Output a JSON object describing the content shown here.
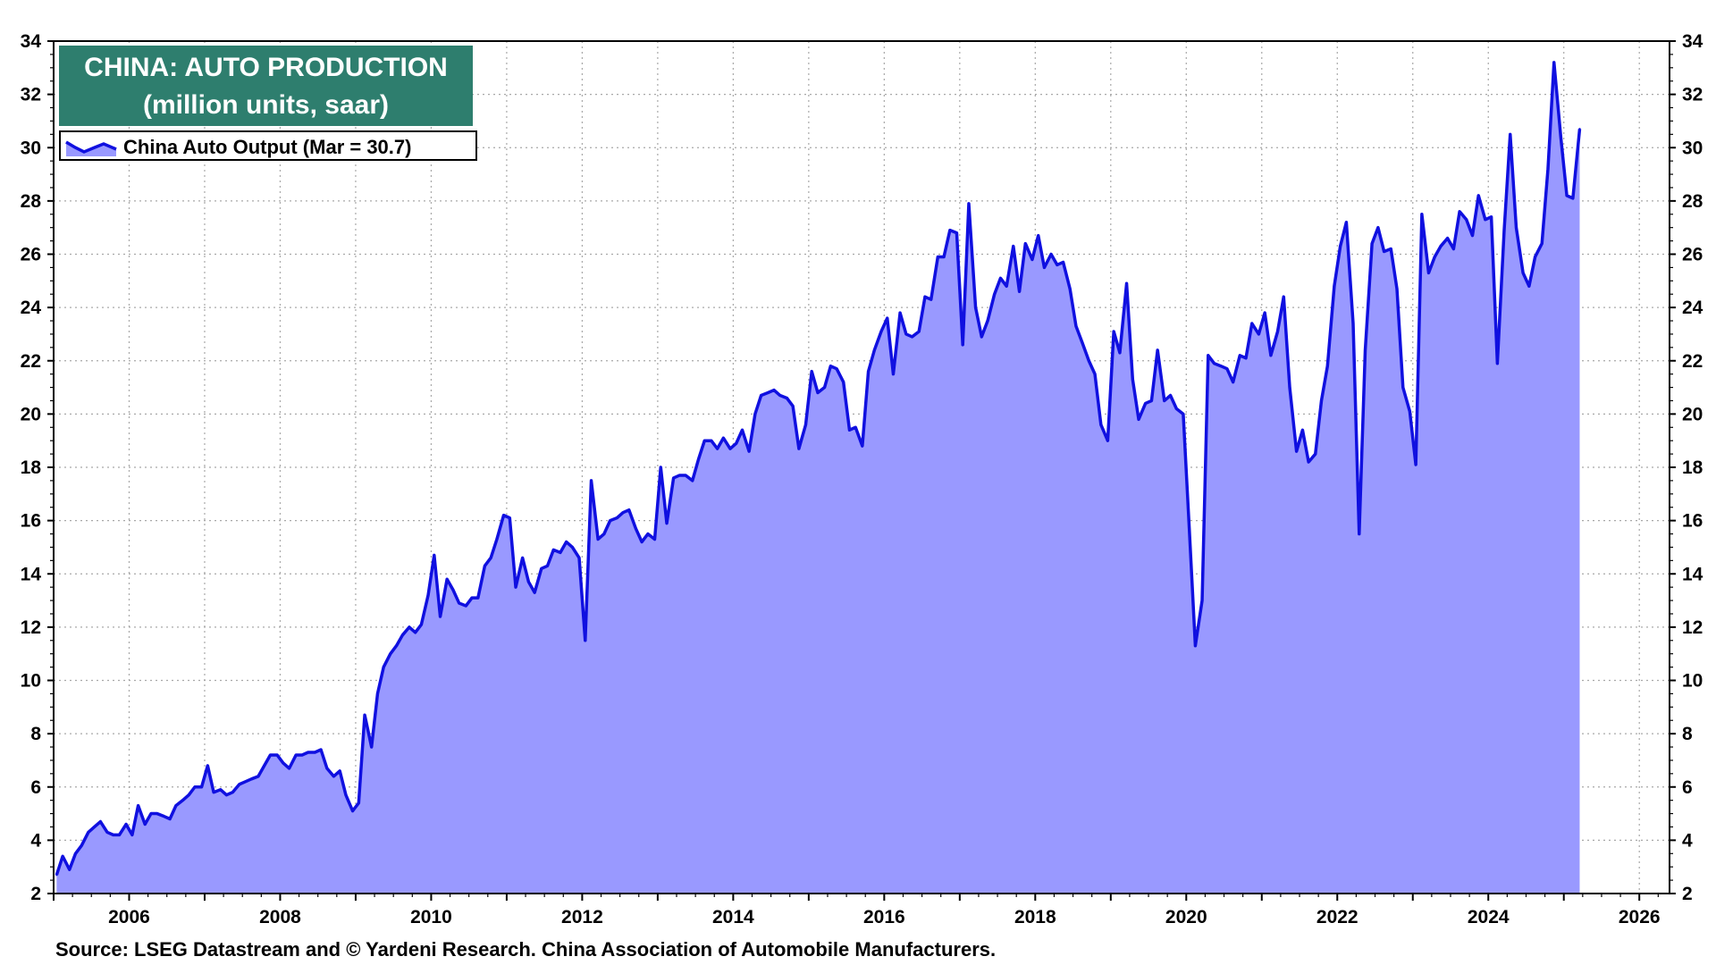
{
  "chart_data": {
    "type": "area",
    "title": "CHINA: AUTO PRODUCTION",
    "subtitle": "(million units, saar)",
    "source": "Source: LSEG Datastream and © Yardeni Research. China Association of Automobile Manufacturers.",
    "xlim": [
      2005.0,
      2026.4
    ],
    "ylim": [
      2,
      34
    ],
    "x_ticks": [
      "2006",
      "2008",
      "2010",
      "2012",
      "2014",
      "2016",
      "2018",
      "2020",
      "2022",
      "2024",
      "2026"
    ],
    "y_ticks": [
      "2",
      "4",
      "6",
      "8",
      "10",
      "12",
      "14",
      "16",
      "18",
      "20",
      "22",
      "24",
      "26",
      "28",
      "30",
      "32",
      "34"
    ],
    "grid": true,
    "legend_position": "top-left",
    "colors": {
      "line": "#1010e0",
      "fill": "#9999ff",
      "title_bg": "#2e7e6e"
    },
    "series": [
      {
        "name": "China Auto Output (Mar = 30.7)",
        "x": [
          2005.04,
          2005.12,
          2005.21,
          2005.29,
          2005.37,
          2005.46,
          2005.54,
          2005.62,
          2005.71,
          2005.79,
          2005.87,
          2005.96,
          2006.04,
          2006.12,
          2006.21,
          2006.29,
          2006.37,
          2006.46,
          2006.54,
          2006.62,
          2006.71,
          2006.79,
          2006.87,
          2006.96,
          2007.04,
          2007.12,
          2007.21,
          2007.29,
          2007.37,
          2007.46,
          2007.54,
          2007.62,
          2007.71,
          2007.79,
          2007.87,
          2007.96,
          2008.04,
          2008.12,
          2008.21,
          2008.29,
          2008.37,
          2008.46,
          2008.54,
          2008.62,
          2008.71,
          2008.79,
          2008.87,
          2008.96,
          2009.04,
          2009.12,
          2009.21,
          2009.29,
          2009.37,
          2009.46,
          2009.54,
          2009.62,
          2009.71,
          2009.79,
          2009.87,
          2009.96,
          2010.04,
          2010.12,
          2010.21,
          2010.29,
          2010.37,
          2010.46,
          2010.54,
          2010.62,
          2010.71,
          2010.79,
          2010.87,
          2010.96,
          2011.04,
          2011.12,
          2011.21,
          2011.29,
          2011.37,
          2011.46,
          2011.54,
          2011.62,
          2011.71,
          2011.79,
          2011.87,
          2011.96,
          2012.04,
          2012.12,
          2012.21,
          2012.29,
          2012.37,
          2012.46,
          2012.54,
          2012.62,
          2012.71,
          2012.79,
          2012.87,
          2012.96,
          2013.04,
          2013.12,
          2013.21,
          2013.29,
          2013.37,
          2013.46,
          2013.54,
          2013.62,
          2013.71,
          2013.79,
          2013.87,
          2013.96,
          2014.04,
          2014.12,
          2014.21,
          2014.29,
          2014.37,
          2014.46,
          2014.54,
          2014.62,
          2014.71,
          2014.79,
          2014.87,
          2014.96,
          2015.04,
          2015.12,
          2015.21,
          2015.29,
          2015.37,
          2015.46,
          2015.54,
          2015.62,
          2015.71,
          2015.79,
          2015.87,
          2015.96,
          2016.04,
          2016.12,
          2016.21,
          2016.29,
          2016.37,
          2016.46,
          2016.54,
          2016.62,
          2016.71,
          2016.79,
          2016.87,
          2016.96,
          2017.04,
          2017.12,
          2017.21,
          2017.29,
          2017.37,
          2017.46,
          2017.54,
          2017.62,
          2017.71,
          2017.79,
          2017.87,
          2017.96,
          2018.04,
          2018.12,
          2018.21,
          2018.29,
          2018.37,
          2018.46,
          2018.54,
          2018.62,
          2018.71,
          2018.79,
          2018.87,
          2018.96,
          2019.04,
          2019.12,
          2019.21,
          2019.29,
          2019.37,
          2019.46,
          2019.54,
          2019.62,
          2019.71,
          2019.79,
          2019.87,
          2019.96,
          2020.04,
          2020.12,
          2020.21,
          2020.29,
          2020.37,
          2020.46,
          2020.54,
          2020.62,
          2020.71,
          2020.79,
          2020.87,
          2020.96,
          2021.04,
          2021.12,
          2021.21,
          2021.29,
          2021.37,
          2021.46,
          2021.54,
          2021.62,
          2021.71,
          2021.79,
          2021.87,
          2021.96,
          2022.04,
          2022.12,
          2022.21,
          2022.29,
          2022.37,
          2022.46,
          2022.54,
          2022.62,
          2022.71,
          2022.79,
          2022.87,
          2022.96,
          2023.04,
          2023.12,
          2023.21,
          2023.29,
          2023.37,
          2023.46,
          2023.54,
          2023.62,
          2023.71,
          2023.79,
          2023.87,
          2023.96,
          2024.04,
          2024.12,
          2024.21,
          2024.29,
          2024.37,
          2024.46,
          2024.54,
          2024.62,
          2024.71,
          2024.79,
          2024.87,
          2024.96,
          2025.04,
          2025.12,
          2025.21
        ],
        "values": [
          2.7,
          3.4,
          2.9,
          3.5,
          3.8,
          4.3,
          4.5,
          4.7,
          4.3,
          4.2,
          4.2,
          4.6,
          4.2,
          5.3,
          4.6,
          5.0,
          5.0,
          4.9,
          4.8,
          5.3,
          5.5,
          5.7,
          6.0,
          6.0,
          6.8,
          5.8,
          5.9,
          5.7,
          5.8,
          6.1,
          6.2,
          6.3,
          6.4,
          6.8,
          7.2,
          7.2,
          6.9,
          6.7,
          7.2,
          7.2,
          7.3,
          7.3,
          7.4,
          6.7,
          6.4,
          6.6,
          5.7,
          5.1,
          5.4,
          8.7,
          7.5,
          9.5,
          10.5,
          11.0,
          11.3,
          11.7,
          12.0,
          11.8,
          12.1,
          13.2,
          14.7,
          12.4,
          13.8,
          13.4,
          12.9,
          12.8,
          13.1,
          13.1,
          14.3,
          14.6,
          15.3,
          16.2,
          16.1,
          13.5,
          14.6,
          13.7,
          13.3,
          14.2,
          14.3,
          14.9,
          14.8,
          15.2,
          15.0,
          14.6,
          11.5,
          17.5,
          15.3,
          15.5,
          16.0,
          16.1,
          16.3,
          16.4,
          15.7,
          15.2,
          15.5,
          15.3,
          18.0,
          15.9,
          17.6,
          17.7,
          17.7,
          17.5,
          18.3,
          19.0,
          19.0,
          18.7,
          19.1,
          18.7,
          18.9,
          19.4,
          18.6,
          20.0,
          20.7,
          20.8,
          20.9,
          20.7,
          20.6,
          20.3,
          18.7,
          19.6,
          21.6,
          20.8,
          21.0,
          21.8,
          21.7,
          21.2,
          19.4,
          19.5,
          18.8,
          21.6,
          22.4,
          23.1,
          23.6,
          21.5,
          23.8,
          23.0,
          22.9,
          23.1,
          24.4,
          24.3,
          25.9,
          25.9,
          26.9,
          26.8,
          22.6,
          27.9,
          24.0,
          22.9,
          23.5,
          24.5,
          25.1,
          24.8,
          26.3,
          24.6,
          26.4,
          25.8,
          26.7,
          25.5,
          26.0,
          25.6,
          25.7,
          24.7,
          23.3,
          22.7,
          22.0,
          21.5,
          19.6,
          19.0,
          23.1,
          22.3,
          24.9,
          21.3,
          19.8,
          20.4,
          20.5,
          22.4,
          20.5,
          20.7,
          20.2,
          20.0,
          15.7,
          11.3,
          13.0,
          22.2,
          21.9,
          21.8,
          21.7,
          21.2,
          22.2,
          22.1,
          23.4,
          23.0,
          23.8,
          22.2,
          23.1,
          24.4,
          21.0,
          18.6,
          19.4,
          18.2,
          18.5,
          20.5,
          21.8,
          24.8,
          26.3,
          27.2,
          23.4,
          15.5,
          22.4,
          26.4,
          27.0,
          26.1,
          26.2,
          24.7,
          21.0,
          20.1,
          18.1,
          27.5,
          25.3,
          25.9,
          26.3,
          26.6,
          26.2,
          27.6,
          27.3,
          26.7,
          28.2,
          27.3,
          27.4,
          21.9,
          26.9,
          30.5,
          27.0,
          25.3,
          24.8,
          25.9,
          26.4,
          29.2,
          33.2,
          30.4,
          28.2,
          28.1,
          30.7
        ]
      }
    ]
  }
}
